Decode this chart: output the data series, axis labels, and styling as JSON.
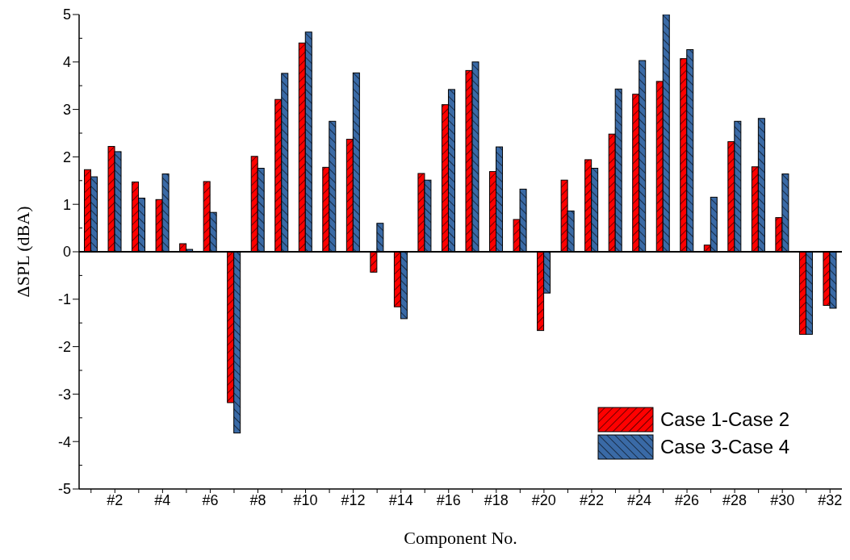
{
  "chart_data": {
    "type": "bar",
    "xlabel": "Component No.",
    "ylabel": "ΔSPL (dBA)",
    "categories": [
      null,
      "#2",
      null,
      "#4",
      null,
      "#6",
      null,
      "#8",
      null,
      "#10",
      null,
      "#12",
      null,
      "#14",
      null,
      "#16",
      null,
      "#18",
      null,
      "#20",
      null,
      "#22",
      null,
      "#24",
      null,
      "#26",
      null,
      "#28",
      null,
      "#30",
      null,
      "#32"
    ],
    "series": [
      {
        "name": "Case 1-Case 2",
        "color": "#ff0000",
        "values": [
          1.73,
          2.22,
          1.47,
          1.1,
          0.17,
          1.48,
          -3.18,
          2.01,
          3.21,
          4.4,
          1.78,
          2.37,
          -0.43,
          -1.16,
          1.65,
          3.1,
          3.82,
          1.69,
          0.68,
          -1.66,
          1.51,
          1.94,
          2.48,
          3.32,
          3.59,
          4.07,
          0.14,
          2.32,
          1.79,
          0.72,
          -1.74,
          -1.13
        ]
      },
      {
        "name": "Case 3-Case 4",
        "color": "#3a6aa6",
        "values": [
          1.58,
          2.11,
          1.13,
          1.64,
          0.05,
          0.83,
          -3.82,
          1.76,
          3.76,
          4.63,
          2.75,
          3.77,
          0.6,
          -1.41,
          1.51,
          3.42,
          4.0,
          2.21,
          1.32,
          -0.87,
          0.86,
          1.76,
          3.43,
          4.03,
          5.0,
          4.26,
          1.15,
          2.75,
          2.81,
          1.64,
          -1.74,
          -1.19
        ]
      }
    ],
    "ylim": [
      -5,
      5
    ],
    "yticks": [
      -5,
      -4,
      -3,
      -2,
      -1,
      0,
      1,
      2,
      3,
      4,
      5
    ],
    "ref_lines": [
      {
        "axis": "y",
        "value": 0,
        "color": "#000000"
      }
    ],
    "grid": false,
    "legend": "bottom right"
  }
}
